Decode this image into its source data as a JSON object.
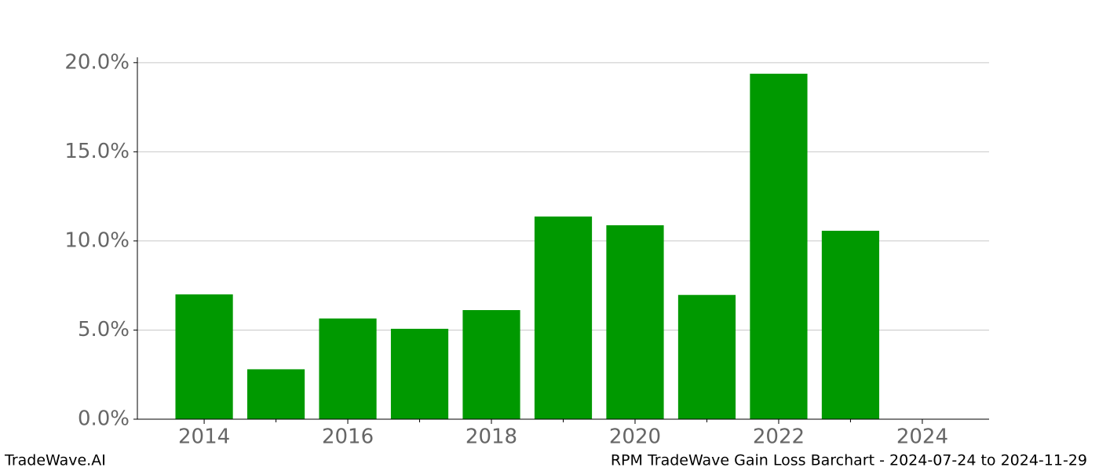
{
  "chart_data": {
    "type": "bar",
    "x": [
      2014,
      2015,
      2016,
      2017,
      2018,
      2019,
      2020,
      2021,
      2022,
      2023
    ],
    "values": [
      7.0,
      2.8,
      5.65,
      5.07,
      6.12,
      11.37,
      10.88,
      6.97,
      19.38,
      10.57
    ],
    "color": "#009900",
    "bar_width": 0.8,
    "xlim": [
      2013.07,
      2024.93
    ],
    "xticks": [
      2014,
      2016,
      2018,
      2020,
      2022,
      2024
    ],
    "xminorticks": [
      2015,
      2017,
      2019,
      2021,
      2023
    ],
    "ylim": [
      0,
      20.3
    ],
    "yticks": [
      {
        "value": 0,
        "label": "0.0%"
      },
      {
        "value": 5,
        "label": "5.0%"
      },
      {
        "value": 10,
        "label": "10.0%"
      },
      {
        "value": 15,
        "label": "15.0%"
      },
      {
        "value": 20,
        "label": "20.0%"
      }
    ],
    "grid": true,
    "footer_left": "TradeWave.AI",
    "footer_right": "RPM TradeWave Gain Loss Barchart - 2024-07-24 to 2024-11-29"
  }
}
